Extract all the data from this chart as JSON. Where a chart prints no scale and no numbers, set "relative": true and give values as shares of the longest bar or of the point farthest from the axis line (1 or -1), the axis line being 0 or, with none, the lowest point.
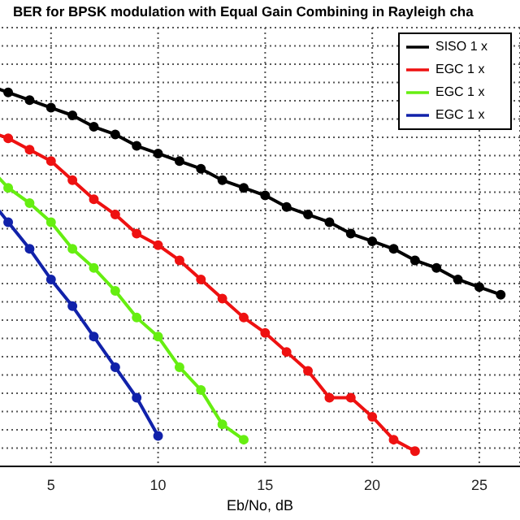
{
  "chart_data": {
    "type": "line",
    "title": "BER for BPSK modulation with Equal Gain Combining in Rayleigh cha",
    "xlabel": "Eb/No, dB",
    "relative": true,
    "xlim": [
      1.1,
      26.9
    ],
    "xticks": [
      5,
      10,
      15,
      20,
      25
    ],
    "tick_labels": "x",
    "grid": true,
    "legend": "top right",
    "marker": "circle",
    "line_style": "solid",
    "x": [
      2,
      3,
      4,
      5,
      6,
      7,
      8,
      9,
      10,
      11,
      12,
      13,
      14,
      15,
      16,
      17,
      18,
      19,
      20,
      21,
      22,
      23,
      24,
      25,
      26
    ],
    "series": [
      {
        "name": "SISO 1 x",
        "color": "#000000",
        "values": [
          1,
          0.98,
          0.96,
          0.94,
          0.92,
          0.89,
          0.87,
          0.84,
          0.82,
          0.8,
          0.78,
          0.75,
          0.73,
          0.71,
          0.68,
          0.66,
          0.64,
          0.61,
          0.59,
          0.57,
          0.54,
          0.52,
          0.49,
          0.47,
          0.45
        ]
      },
      {
        "name": "EGC 1 x",
        "color": "#ee1111",
        "values": [
          0.88,
          0.86,
          0.83,
          0.8,
          0.75,
          0.7,
          0.66,
          0.61,
          0.58,
          0.54,
          0.49,
          0.44,
          0.39,
          0.35,
          0.3,
          0.25,
          0.18,
          0.18,
          0.13,
          0.07,
          0.04,
          null,
          null,
          null,
          null
        ]
      },
      {
        "name": "EGC 1 x",
        "color": "#66ee11",
        "values": [
          0.79,
          0.73,
          0.69,
          0.64,
          0.57,
          0.52,
          0.46,
          0.39,
          0.34,
          0.26,
          0.2,
          0.11,
          0.07,
          null,
          null,
          null,
          null,
          null,
          null,
          null,
          null,
          null,
          null,
          null,
          null
        ]
      },
      {
        "name": "EGC 1 x",
        "color": "#1122aa",
        "values": [
          0.71,
          0.64,
          0.57,
          0.49,
          0.42,
          0.34,
          0.26,
          0.18,
          0.08,
          null,
          null,
          null,
          null,
          null,
          null,
          null,
          null,
          null,
          null,
          null,
          null,
          null,
          null,
          null,
          null
        ]
      }
    ]
  }
}
